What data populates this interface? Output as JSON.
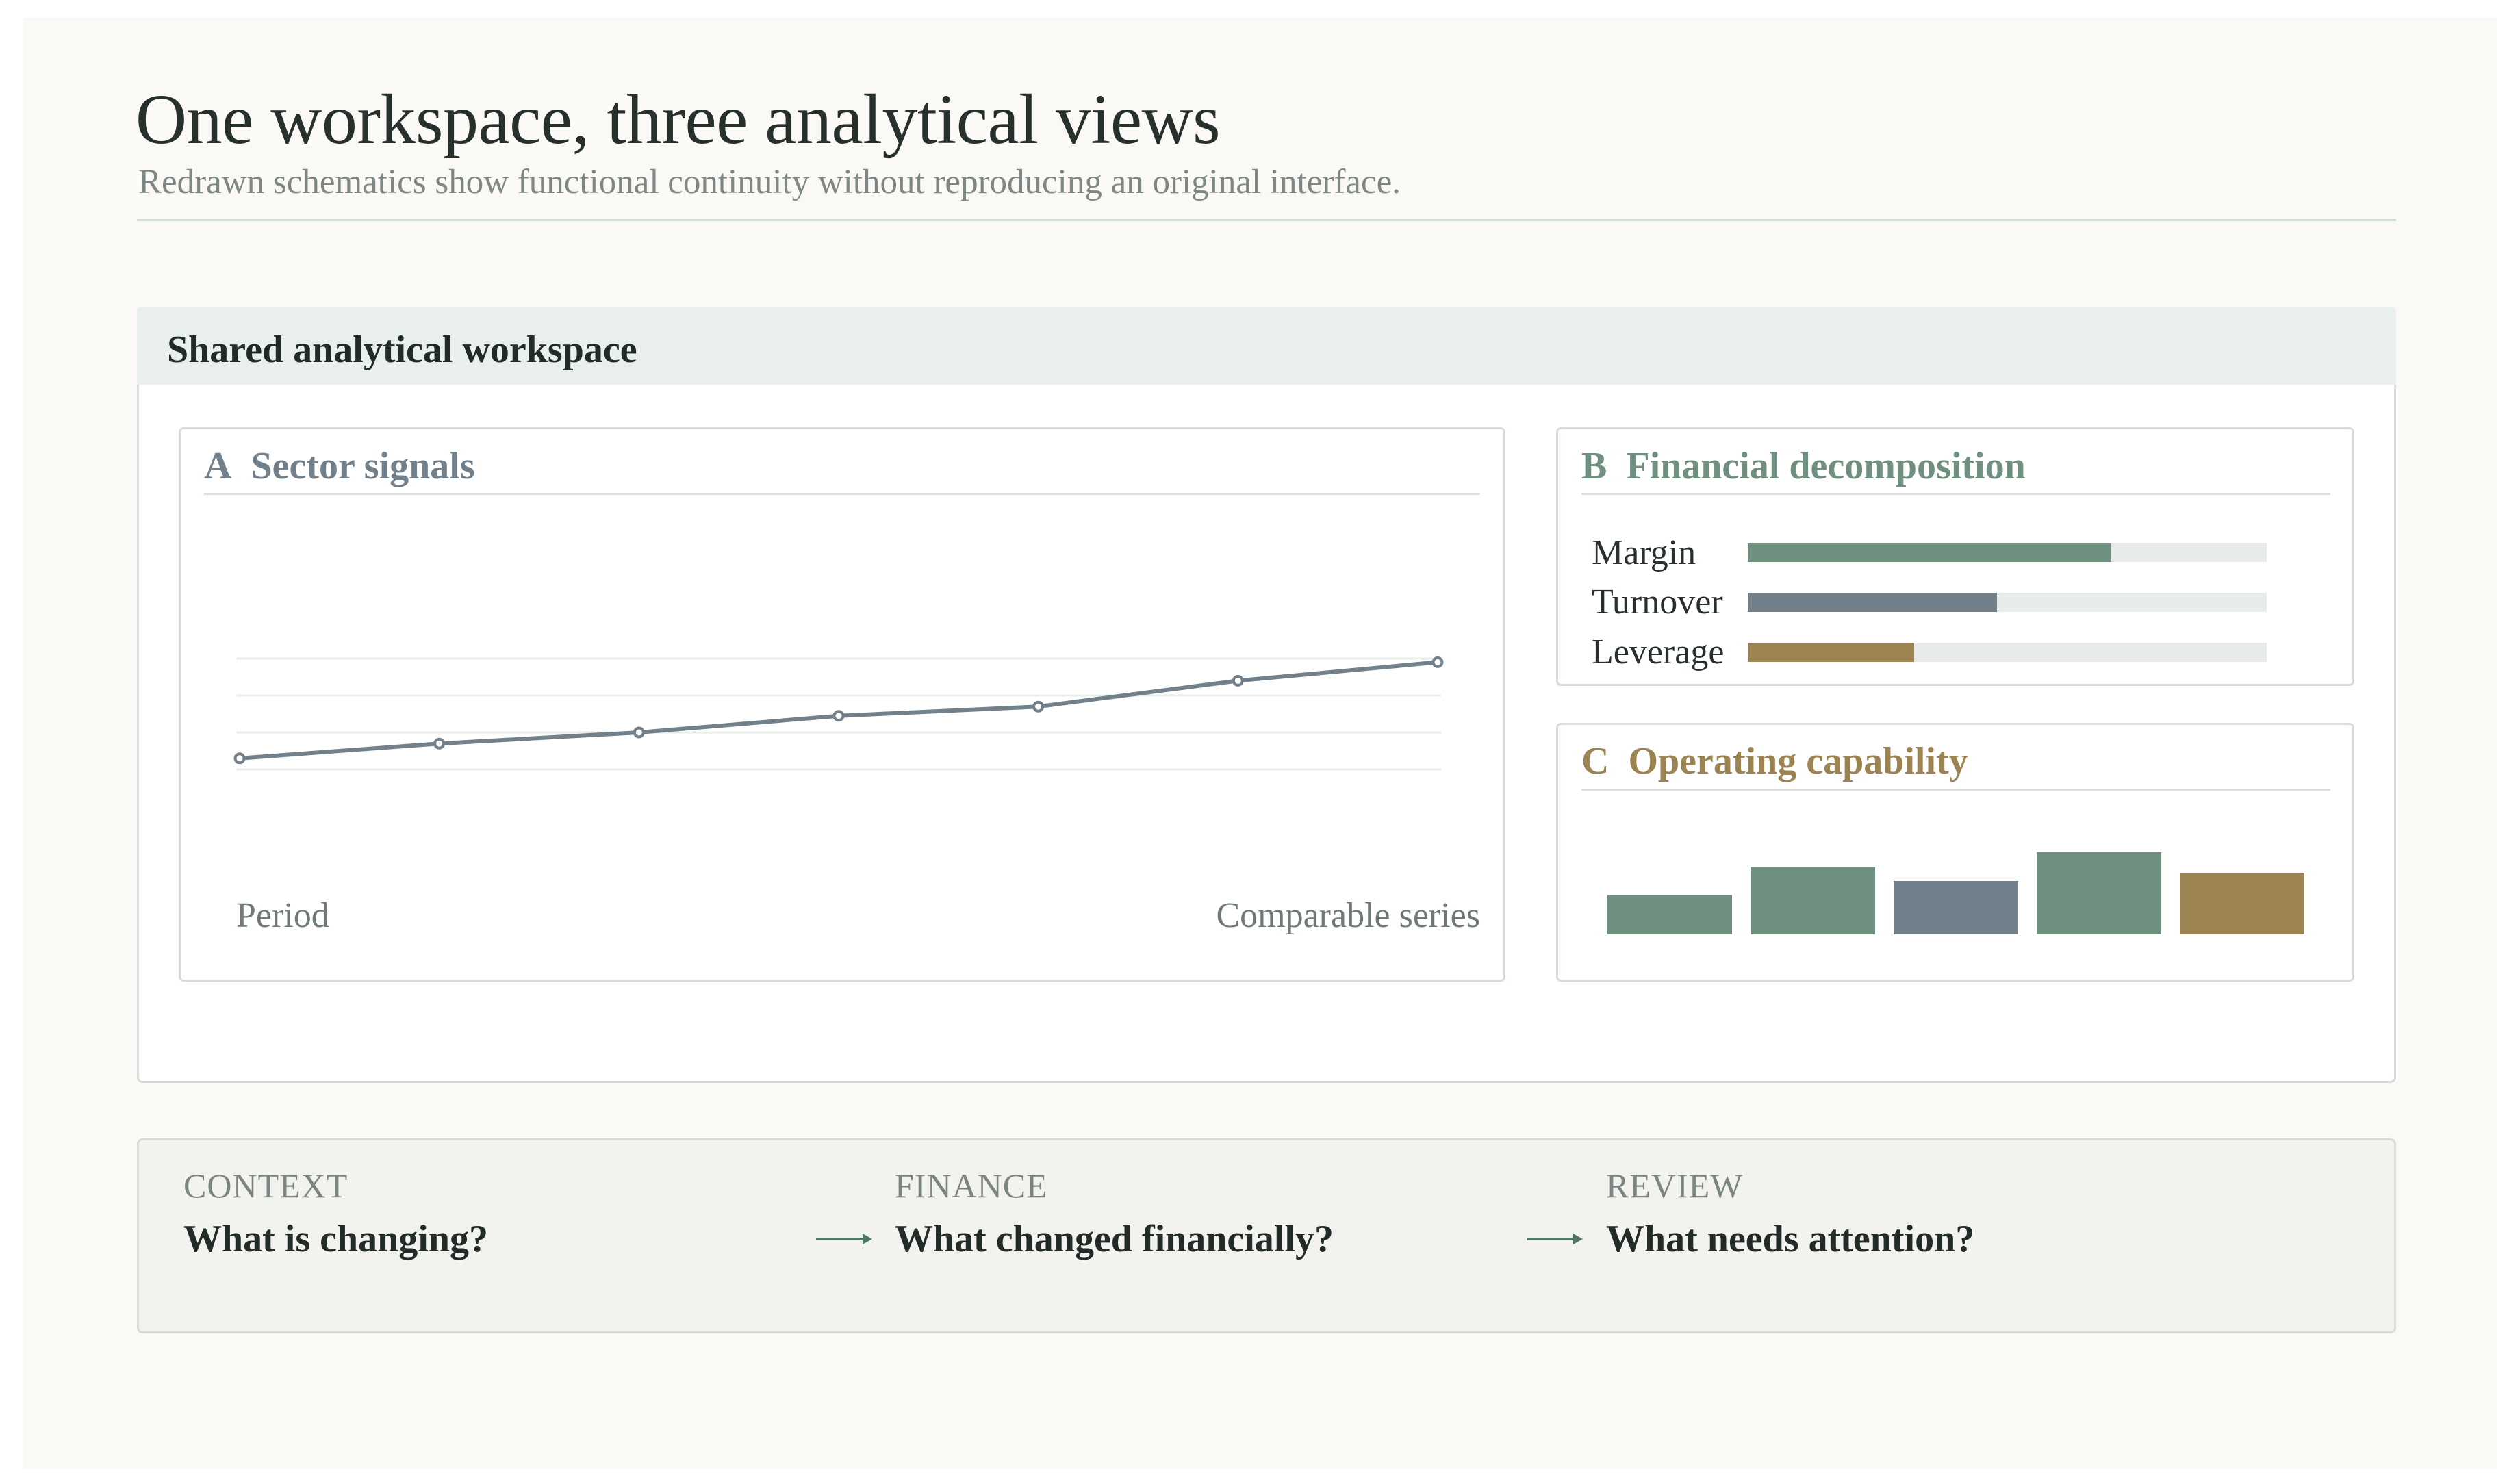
{
  "page": {
    "title": "One workspace, three analytical views",
    "subtitle": "Redrawn schematics show functional continuity without reproducing an original interface."
  },
  "workspace": {
    "title": "Shared analytical workspace",
    "panels": [
      {
        "letter": "A",
        "title": "Sector signals",
        "color": "#72808c",
        "x_label": "Period",
        "series_label": "Comparable series"
      },
      {
        "letter": "B",
        "title": "Financial decomposition",
        "color": "#6f8f7f"
      },
      {
        "letter": "C",
        "title": "Operating capability",
        "color": "#9b8352"
      }
    ]
  },
  "chart_data": [
    {
      "type": "line",
      "panel": "A",
      "x": [
        1,
        2,
        3,
        4,
        5,
        6,
        7
      ],
      "series": [
        {
          "values": [
            0.26,
            0.34,
            0.4,
            0.49,
            0.54,
            0.68,
            0.78
          ],
          "color": "#72808c"
        }
      ],
      "ylim": [
        0,
        1
      ],
      "grid": true,
      "xlabel": "Period",
      "annotation": "Comparable series"
    },
    {
      "type": "bar",
      "orientation": "horizontal",
      "panel": "B",
      "categories": [
        "Margin",
        "Turnover",
        "Leverage"
      ],
      "values": [
        0.7,
        0.48,
        0.32
      ],
      "max": 1,
      "colors": [
        "#6f8f7f",
        "#72808c",
        "#9b8352"
      ],
      "track_color": "#e7ebea"
    },
    {
      "type": "bar",
      "panel": "C",
      "categories": [
        "1",
        "2",
        "3",
        "4",
        "5"
      ],
      "values": [
        0.48,
        0.82,
        0.65,
        1.0,
        0.75
      ],
      "max": 1,
      "colors": [
        "#6f8f7f",
        "#6f8f7f",
        "#72808c",
        "#6f8f7f",
        "#9b8352"
      ]
    }
  ],
  "flow": {
    "arrow_color": "#4f7667",
    "steps": [
      {
        "kicker": "CONTEXT",
        "question": "What is changing?"
      },
      {
        "kicker": "FINANCE",
        "question": "What changed financially?"
      },
      {
        "kicker": "REVIEW",
        "question": "What needs attention?"
      }
    ]
  }
}
